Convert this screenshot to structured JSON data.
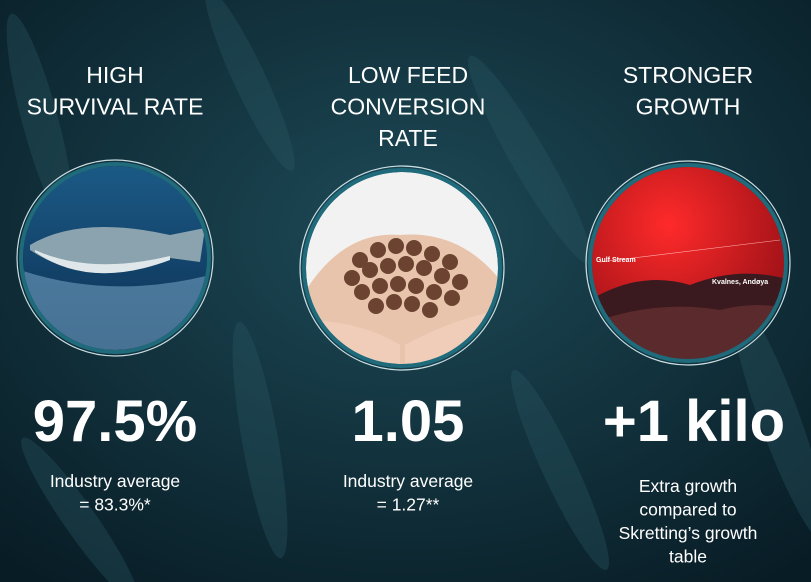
{
  "columns": [
    {
      "title": [
        "HIGH",
        "SURVIVAL RATE"
      ],
      "value": "97.5%",
      "note": [
        "Industry average",
        "= 83.3%*"
      ]
    },
    {
      "title": [
        "LOW FEED",
        "CONVERSION",
        "RATE"
      ],
      "value": "1.05",
      "note": [
        "Industry average",
        "= 1.27**"
      ]
    },
    {
      "title": [
        "STRONGER",
        "GROWTH"
      ],
      "value": "+1 kilo",
      "note": [
        "Extra growth",
        "compared to",
        "Skretting’s growth",
        "table"
      ]
    }
  ],
  "map_labels": [
    "Gulf Stream",
    "Kvalnes, Andøya"
  ]
}
